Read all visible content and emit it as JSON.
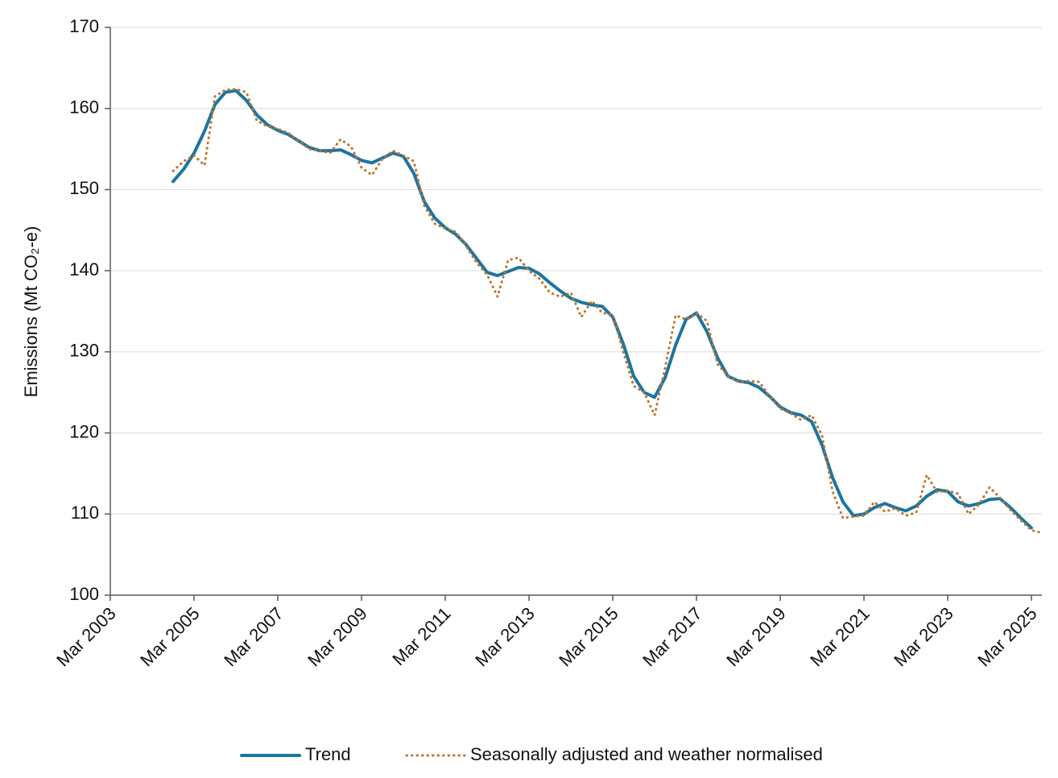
{
  "chart_data": {
    "type": "line",
    "y_label": "Emissions (Mt CO₂-e)",
    "categories": [
      "Mar 2003",
      null,
      null,
      null,
      null,
      null,
      null,
      null,
      "Mar 2005",
      null,
      null,
      null,
      null,
      null,
      null,
      null,
      "Mar 2007",
      null,
      null,
      null,
      null,
      null,
      null,
      null,
      "Mar 2009",
      null,
      null,
      null,
      null,
      null,
      null,
      null,
      "Mar 2011",
      null,
      null,
      null,
      null,
      null,
      null,
      null,
      "Mar 2013",
      null,
      null,
      null,
      null,
      null,
      null,
      null,
      "Mar 2015",
      null,
      null,
      null,
      null,
      null,
      null,
      null,
      "Mar 2017",
      null,
      null,
      null,
      null,
      null,
      null,
      null,
      "Mar 2019",
      null,
      null,
      null,
      null,
      null,
      null,
      null,
      "Mar 2021",
      null,
      null,
      null,
      null,
      null,
      null,
      null,
      "Mar 2023",
      null,
      null,
      null,
      null,
      null,
      null,
      null,
      "Mar 2025",
      null
    ],
    "series": [
      {
        "name": "Trend",
        "color": "#1b75a0",
        "style": "solid",
        "values": [
          null,
          null,
          null,
          null,
          null,
          null,
          151.0,
          152.5,
          154.5,
          157.2,
          160.5,
          162.0,
          162.2,
          161.0,
          159.2,
          158.0,
          157.3,
          156.8,
          156.0,
          155.2,
          154.8,
          154.8,
          154.9,
          154.3,
          153.6,
          153.3,
          153.9,
          154.5,
          154.1,
          152.0,
          148.5,
          146.5,
          145.3,
          144.5,
          143.2,
          141.5,
          139.8,
          139.4,
          139.9,
          140.4,
          140.3,
          139.6,
          138.5,
          137.5,
          136.6,
          136.1,
          135.8,
          135.6,
          134.3,
          131.0,
          127.0,
          125.0,
          124.4,
          126.8,
          130.8,
          134.0,
          134.8,
          132.5,
          129.3,
          127.0,
          126.4,
          126.2,
          125.6,
          124.5,
          123.2,
          122.5,
          122.2,
          121.4,
          118.5,
          114.5,
          111.5,
          109.8,
          110.0,
          110.8,
          111.3,
          110.8,
          110.4,
          111.0,
          112.2,
          113.0,
          112.8,
          111.5,
          111.0,
          111.3,
          111.8,
          111.9,
          110.8,
          109.5,
          108.3,
          null
        ]
      },
      {
        "name": "Seasonally adjusted and weather normalised",
        "color": "#c0732a",
        "style": "dotted",
        "values": [
          null,
          null,
          null,
          null,
          null,
          null,
          152.3,
          153.5,
          154.2,
          153.0,
          161.5,
          162.3,
          162.4,
          162.0,
          158.5,
          157.8,
          157.5,
          157.0,
          156.0,
          155.0,
          154.8,
          154.5,
          156.2,
          155.3,
          152.7,
          151.8,
          153.8,
          154.8,
          154.2,
          153.5,
          148.0,
          145.8,
          145.2,
          144.8,
          143.0,
          141.0,
          139.5,
          136.8,
          141.3,
          141.6,
          140.0,
          139.0,
          137.3,
          136.8,
          137.3,
          134.3,
          136.3,
          134.8,
          134.6,
          130.0,
          125.8,
          125.0,
          122.2,
          128.0,
          134.5,
          134.0,
          134.8,
          133.8,
          128.5,
          127.0,
          126.3,
          126.4,
          126.3,
          124.5,
          123.0,
          122.4,
          121.6,
          122.2,
          119.7,
          112.8,
          109.5,
          109.7,
          109.8,
          111.5,
          110.3,
          110.7,
          109.8,
          110.2,
          114.8,
          112.7,
          112.9,
          112.5,
          110.0,
          111.2,
          113.3,
          112.0,
          110.5,
          109.2,
          108.0,
          107.7
        ]
      }
    ],
    "ylim": [
      100,
      170
    ],
    "yticks": [
      100,
      110,
      120,
      130,
      140,
      150,
      160,
      170
    ],
    "grid": true,
    "legend": "bottom"
  }
}
